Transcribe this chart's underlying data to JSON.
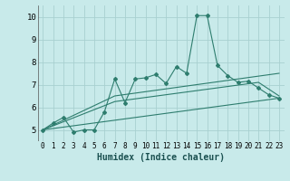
{
  "xlabel": "Humidex (Indice chaleur)",
  "xlim": [
    -0.5,
    23.5
  ],
  "ylim": [
    4.5,
    10.5
  ],
  "yticks": [
    5,
    6,
    7,
    8,
    9,
    10
  ],
  "xticks": [
    0,
    1,
    2,
    3,
    4,
    5,
    6,
    7,
    8,
    9,
    10,
    11,
    12,
    13,
    14,
    15,
    16,
    17,
    18,
    19,
    20,
    21,
    22,
    23
  ],
  "bg_color": "#c8eaea",
  "grid_color": "#a8d0d0",
  "line_color": "#2e7d6e",
  "line1_x": [
    0,
    1,
    2,
    3,
    4,
    5,
    6,
    7,
    8,
    9,
    10,
    11,
    12,
    13,
    14,
    15,
    16,
    17,
    18,
    19,
    20,
    21,
    22,
    23
  ],
  "line1_y": [
    5.0,
    5.3,
    5.55,
    4.9,
    5.0,
    5.0,
    5.8,
    7.25,
    6.2,
    7.25,
    7.3,
    7.45,
    7.05,
    7.8,
    7.5,
    10.05,
    10.05,
    7.85,
    7.4,
    7.1,
    7.15,
    6.85,
    6.55,
    6.4
  ],
  "line2_x": [
    0,
    23
  ],
  "line2_y": [
    5.0,
    6.4
  ],
  "line3_x": [
    0,
    7,
    21,
    23
  ],
  "line3_y": [
    5.0,
    6.25,
    7.1,
    6.5
  ],
  "line4_x": [
    0,
    7,
    23
  ],
  "line4_y": [
    5.0,
    6.5,
    7.5
  ]
}
